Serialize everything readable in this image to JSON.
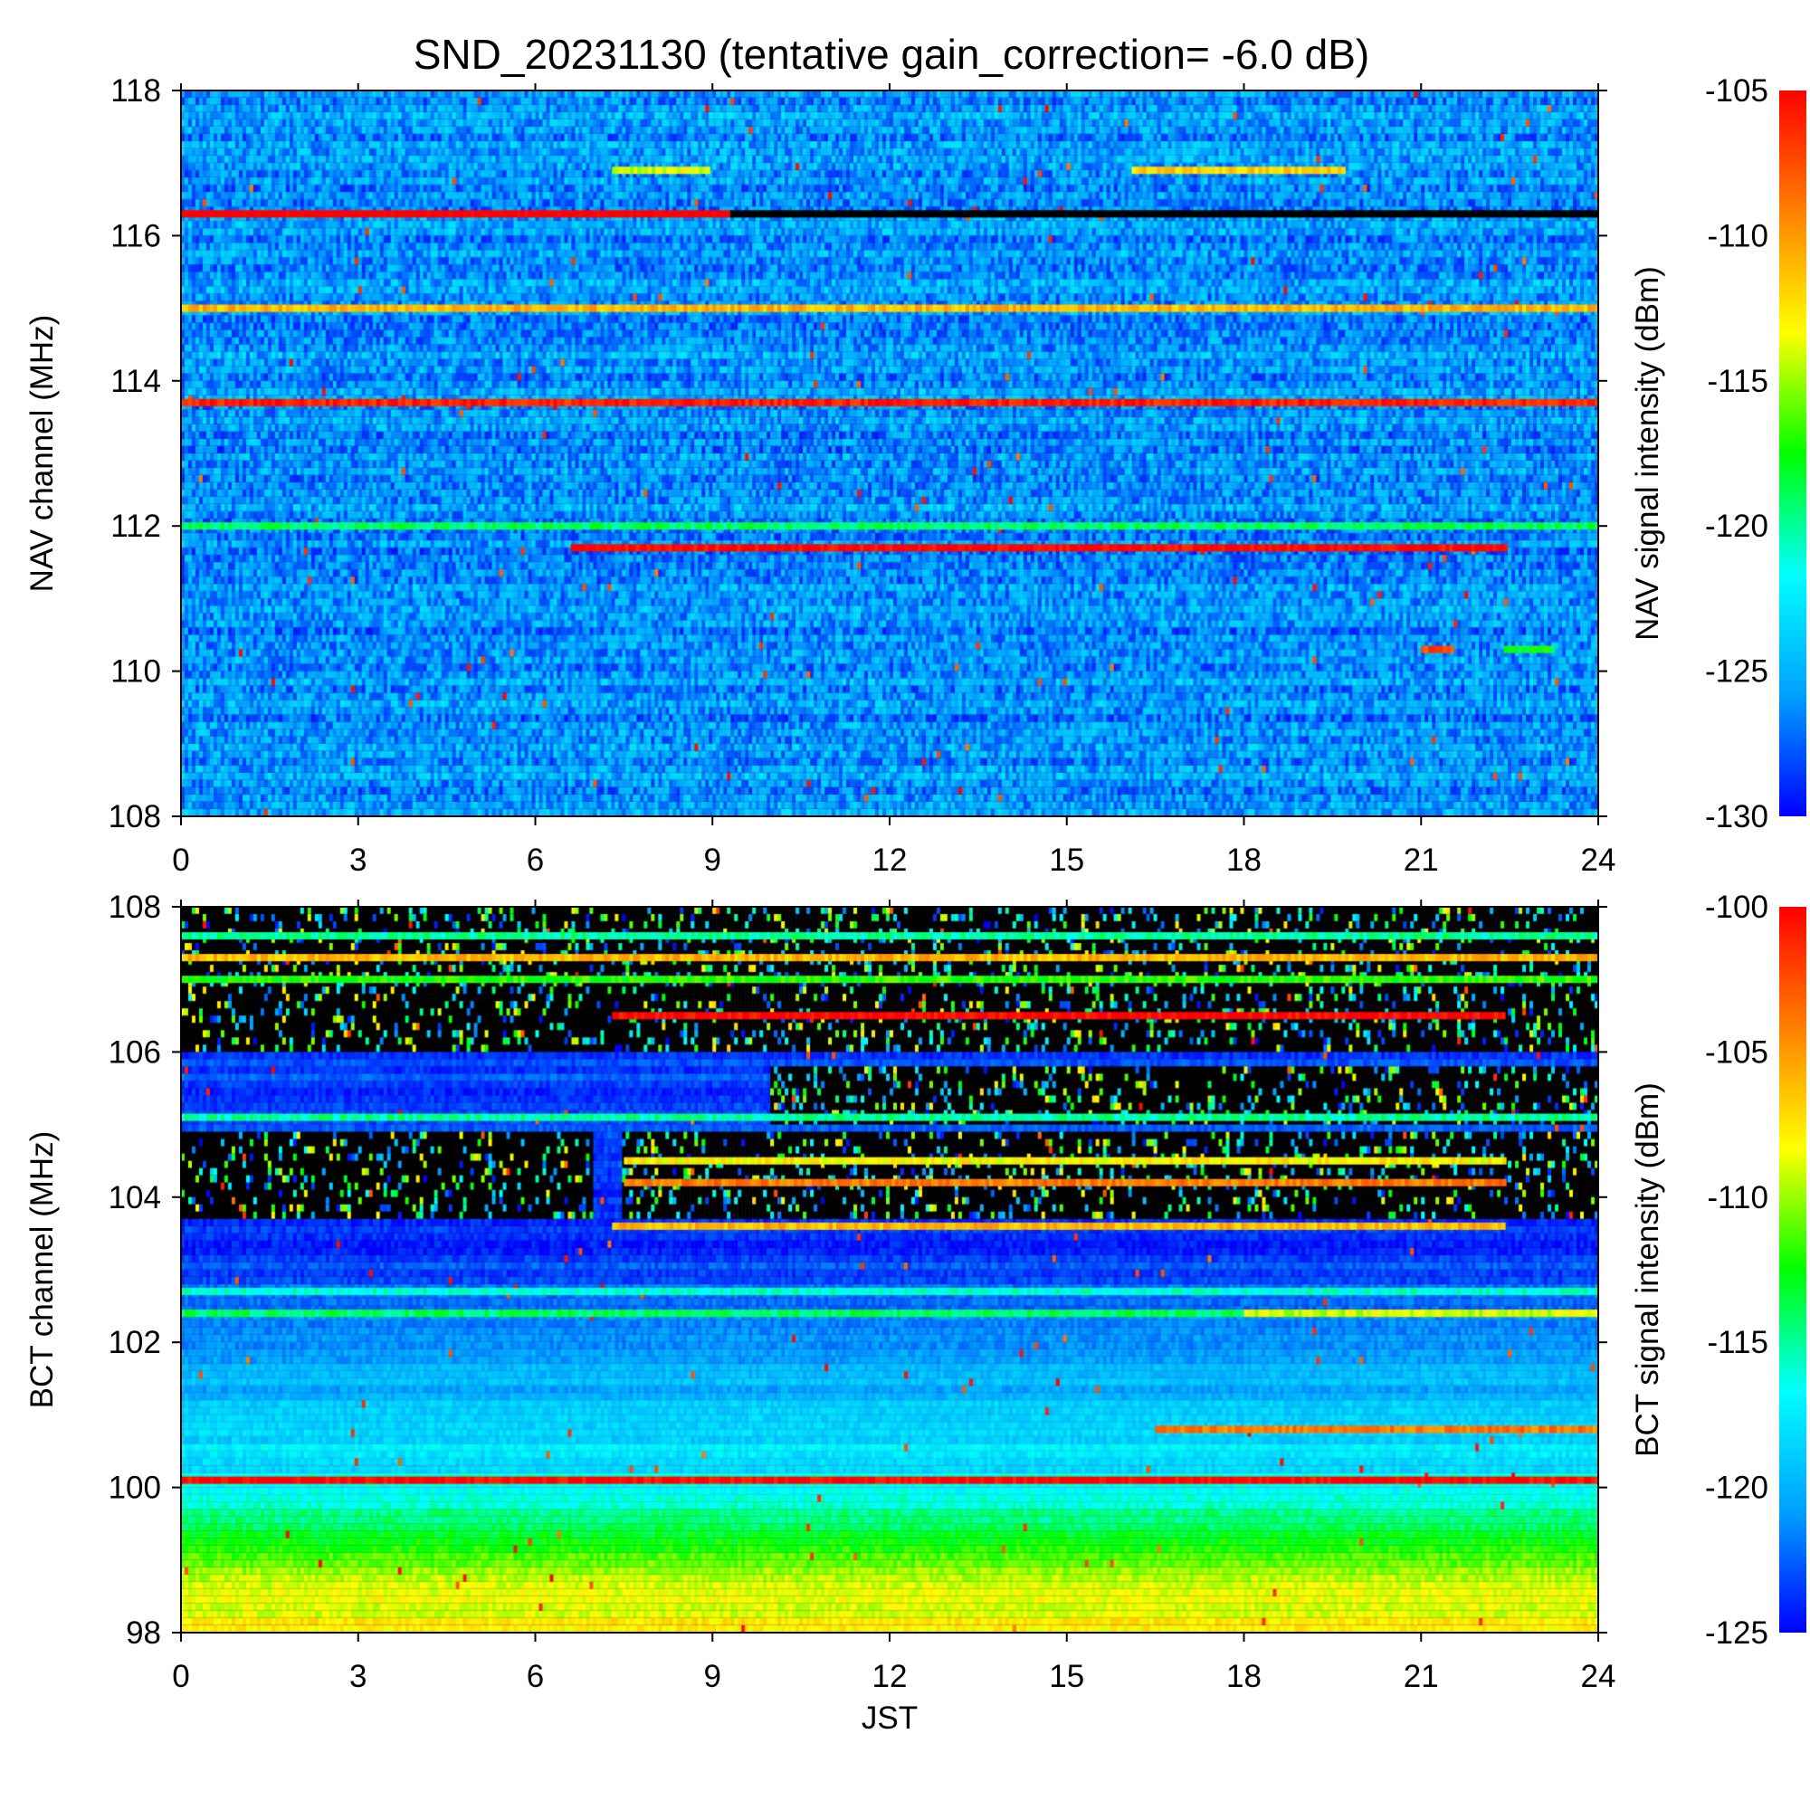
{
  "chart_data": [
    {
      "type": "heatmap",
      "title": "SND_20231130 (tentative gain_correction= -6.0 dB)",
      "xlabel": "",
      "ylabel": "NAV channel (MHz)",
      "colorbar_label": "NAV signal intensity (dBm)",
      "xlim": [
        0,
        24
      ],
      "ylim": [
        108,
        118
      ],
      "x_ticks": [
        "0",
        "3",
        "6",
        "9",
        "12",
        "15",
        "18",
        "21",
        "24"
      ],
      "y_ticks": [
        "108",
        "110",
        "112",
        "114",
        "116",
        "118"
      ],
      "colorbar_range": [
        -130,
        -105
      ],
      "colorbar_ticks": [
        "-105",
        "-110",
        "-115",
        "-120",
        "-125",
        "-130"
      ],
      "colormap": [
        "#0000ff",
        "#00a0ff",
        "#00ffff",
        "#00ff00",
        "#ffff00",
        "#ff8000",
        "#ff0000"
      ],
      "background_value": -126,
      "bands": [
        {
          "y": 116.3,
          "x0": 0,
          "x1": 9.3,
          "value": -104
        },
        {
          "y": 116.3,
          "x0": 9.3,
          "x1": 24,
          "value": -140
        },
        {
          "y": 115.0,
          "x0": 0,
          "x1": 24,
          "value": -111
        },
        {
          "y": 113.7,
          "x0": 0,
          "x1": 24,
          "value": -106
        },
        {
          "y": 112.0,
          "x0": 0,
          "x1": 24,
          "value": -119
        },
        {
          "y": 111.7,
          "x0": 6.6,
          "x1": 22.4,
          "value": -105
        },
        {
          "y": 116.9,
          "x0": 7.3,
          "x1": 8.9,
          "value": -114
        },
        {
          "y": 116.9,
          "x0": 16.1,
          "x1": 19.7,
          "value": -112
        },
        {
          "y": 110.3,
          "x0": 21.0,
          "x1": 21.5,
          "value": -107
        },
        {
          "y": 110.3,
          "x0": 22.4,
          "x1": 23.2,
          "value": -118
        }
      ]
    },
    {
      "type": "heatmap",
      "title": "",
      "xlabel": "JST",
      "ylabel": "BCT channel (MHz)",
      "colorbar_label": "BCT signal intensity (dBm)",
      "xlim": [
        0,
        24
      ],
      "ylim": [
        98,
        108
      ],
      "x_ticks": [
        "0",
        "3",
        "6",
        "9",
        "12",
        "15",
        "18",
        "21",
        "24"
      ],
      "y_ticks": [
        "98",
        "100",
        "102",
        "104",
        "106",
        "108"
      ],
      "colorbar_range": [
        -125,
        -100
      ],
      "colorbar_ticks": [
        "-100",
        "-105",
        "-110",
        "-115",
        "-120",
        "-125"
      ],
      "colormap": [
        "#0000ff",
        "#00a0ff",
        "#00ffff",
        "#00ff00",
        "#ffff00",
        "#ff8000",
        "#ff0000"
      ],
      "background_profile": [
        {
          "y": 98.0,
          "value": -108
        },
        {
          "y": 99.0,
          "value": -111
        },
        {
          "y": 100.0,
          "value": -117
        },
        {
          "y": 101.0,
          "value": -119
        },
        {
          "y": 102.0,
          "value": -121
        },
        {
          "y": 103.5,
          "value": -124
        },
        {
          "y": 106.0,
          "value": -123
        }
      ],
      "dark_regions": [
        {
          "y0": 106.0,
          "y1": 108.0,
          "x0": 0,
          "x1": 24
        },
        {
          "y0": 103.7,
          "y1": 104.9,
          "x0": 0,
          "x1": 7.0
        },
        {
          "y0": 103.7,
          "y1": 104.9,
          "x0": 7.5,
          "x1": 24
        },
        {
          "y0": 105.0,
          "y1": 105.8,
          "x0": 10.0,
          "x1": 24
        }
      ],
      "bands": [
        {
          "y": 106.5,
          "x0": 7.3,
          "x1": 22.4,
          "value": -100
        },
        {
          "y": 100.1,
          "x0": 0,
          "x1": 24,
          "value": -100
        },
        {
          "y": 103.6,
          "x0": 7.3,
          "x1": 22.4,
          "value": -106
        },
        {
          "y": 100.8,
          "x0": 16.5,
          "x1": 24,
          "value": -104
        },
        {
          "y": 107.6,
          "x0": 0,
          "x1": 24,
          "value": -115
        },
        {
          "y": 107.3,
          "x0": 0,
          "x1": 24,
          "value": -106
        },
        {
          "y": 107.0,
          "x0": 0,
          "x1": 24,
          "value": -112
        },
        {
          "y": 105.1,
          "x0": 0,
          "x1": 24,
          "value": -115
        },
        {
          "y": 104.2,
          "x0": 7.5,
          "x1": 22.4,
          "value": -104
        },
        {
          "y": 104.5,
          "x0": 7.5,
          "x1": 22.4,
          "value": -108
        },
        {
          "y": 102.7,
          "x0": 0,
          "x1": 24,
          "value": -116
        },
        {
          "y": 102.4,
          "x0": 0,
          "x1": 24,
          "value": -114
        },
        {
          "y": 102.4,
          "x0": 18.0,
          "x1": 24,
          "value": -109
        }
      ]
    }
  ]
}
